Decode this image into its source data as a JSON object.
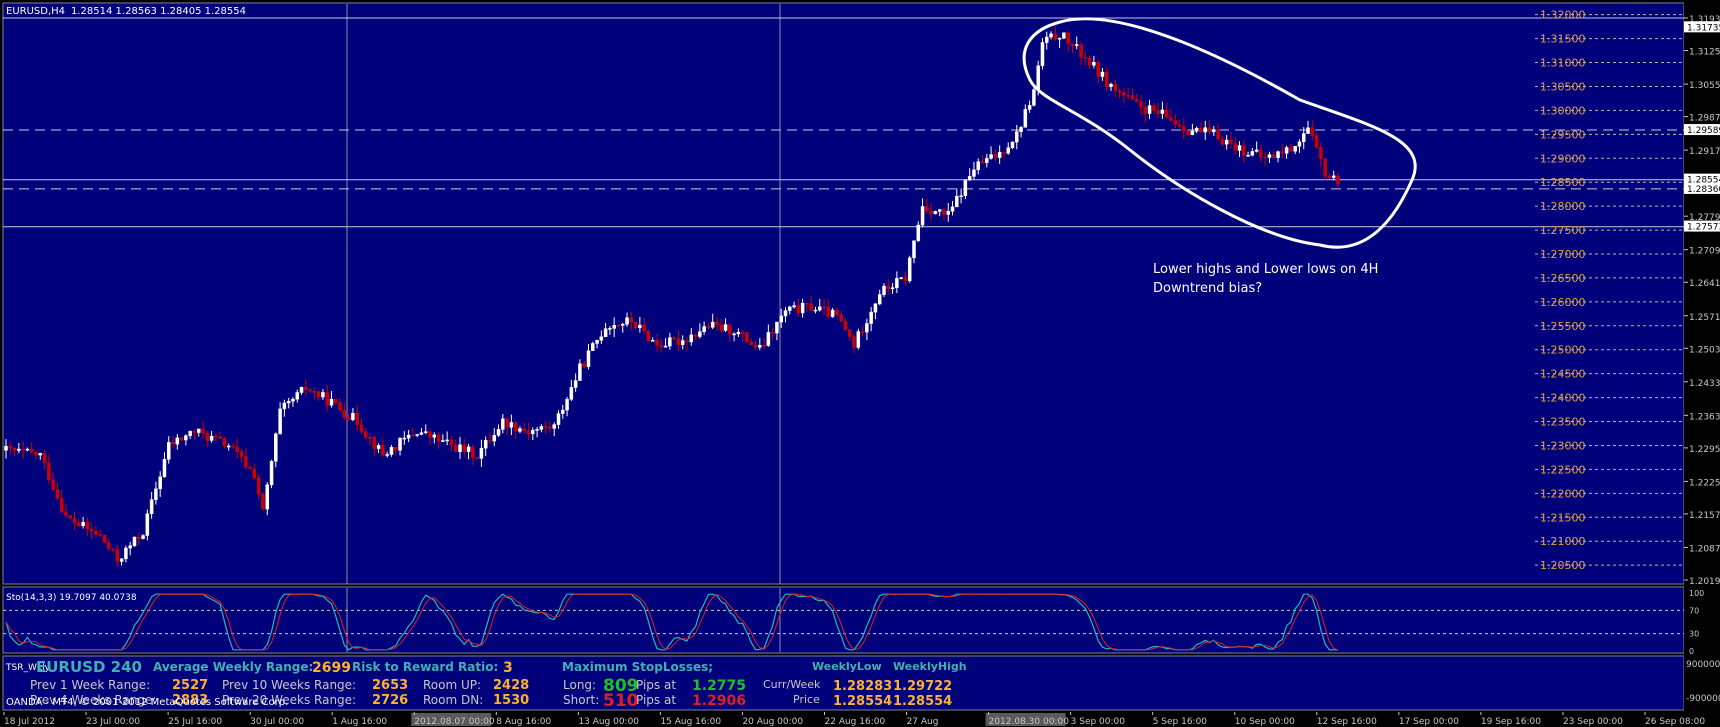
{
  "symbol_header": {
    "symbol": "EURUSD,H4",
    "ohlc": "1.28514 1.28563 1.28405 1.28554"
  },
  "colors": {
    "background": "#00007A",
    "frame": "#000000",
    "axis_text": "#C8C8C8",
    "bull": "#FFFFFF",
    "bear": "#CC0000",
    "grid": "#B4B4C8",
    "level_orange": "#E0A040",
    "stoch_main": "#20B8B8",
    "stoch_signal": "#DD2020",
    "annotation": "#FFFFFF"
  },
  "price_axis": {
    "labels": [
      "1.31930",
      "1.31250",
      "1.30550",
      "1.29870",
      "1.29170",
      "1.28554",
      "1.27790",
      "1.27090",
      "1.26410",
      "1.25710",
      "1.25030",
      "1.24330",
      "1.23630",
      "1.22950",
      "1.22250",
      "1.21570",
      "1.20870",
      "1.20190"
    ],
    "highlight_labels": [
      {
        "text": "1.31735",
        "price": 1.31735
      },
      {
        "text": "1.29589",
        "price": 1.29589
      },
      {
        "text": "1.28554",
        "price": 1.28554
      },
      {
        "text": "1.28360",
        "price": 1.2836
      },
      {
        "text": "1.27573",
        "price": 1.27573
      }
    ],
    "ylim": [
      1.2019,
      1.3193
    ]
  },
  "level_labels": [
    "1.32000",
    "1.31500",
    "1.31000",
    "1.30500",
    "1.30000",
    "1.29500",
    "1.29000",
    "1.28500",
    "1.28000",
    "1.27500",
    "1.27000",
    "1.26500",
    "1.26000",
    "1.25500",
    "1.25000",
    "1.24500",
    "1.24000",
    "1.23500",
    "1.23000",
    "1.22500",
    "1.22000",
    "1.21500",
    "1.21000",
    "1.20500"
  ],
  "time_axis": {
    "labels": [
      "18 Jul 2012",
      "23 Jul 00:00",
      "25 Jul 16:00",
      "30 Jul 00:00",
      "1 Aug 16:00",
      "2012.08.07 00:00",
      "8 Aug 16:00",
      "13 Aug 00:00",
      "15 Aug 16:00",
      "20 Aug 00:00",
      "22 Aug 16:00",
      "27 Aug",
      "2012.08.30 00:00",
      "3 Sep 00:00",
      "5 Sep 16:00",
      "10 Sep 00:00",
      "12 Sep 16:00",
      "17 Sep 00:00",
      "19 Sep 16:00",
      "23 Sep 00:00",
      "26 Sep 08:00"
    ],
    "highlighted": [
      "2012.08.07 00:00",
      "2012.08.30 00:00"
    ]
  },
  "annotation": {
    "line1": "Lower highs and Lower lows on 4H",
    "line2": "Downtrend bias?"
  },
  "stochastic": {
    "label": "Sto(14,3,3) 19.7097 40.0738",
    "axis_labels": [
      "100",
      "70",
      "30",
      "0"
    ]
  },
  "tsr_panel": {
    "indicator": "TSR_Wkly",
    "axis_label": "-900000",
    "axis_label_top": "900000",
    "title": "EURUSD 240",
    "avg_weekly_range_label": "Average Weekly Range:",
    "avg_weekly_range_value": "2699",
    "rr_label": "Risk to Reward Ratio:",
    "rr_value": "3",
    "max_sl_label": "Maximum StopLosses;",
    "weekly_low_label": "WeeklyLow",
    "weekly_high_label": "WeeklyHigh",
    "prev1_label": "Prev 1 Week Range:",
    "prev1_value": "2527",
    "prev10_label": "Prev 10 Weeks Range:",
    "prev10_value": "2653",
    "room_up_label": "Room UP:",
    "room_up_value": "2428",
    "long_label": "Long:",
    "long_value": "809",
    "pips_at_label": "Pips at",
    "long_price": "1.2775",
    "curr_week_label": "Curr/Week",
    "curr_week_low": "1.28283",
    "curr_week_high": "1.29722",
    "prev4_label": "Prev 4 Weeks Range:",
    "prev4_value": "2883",
    "prev20_label": "Prev 20 Weeks Range:",
    "prev20_value": "2726",
    "room_dn_label": "Room DN:",
    "room_dn_value": "1530",
    "short_label": "Short:",
    "short_value": "510",
    "short_price": "1.2906",
    "price_label": "Price",
    "price_low": "1.28554",
    "price_high": "1.28554",
    "copyright": "OANDA - MT4, © 2001-2012 MetaQuotes Software Corp."
  },
  "chart_data": {
    "type": "candlestick",
    "x_start": "18 Jul 2012",
    "x_end": "27 Sep 2012",
    "price_waypoints": [
      [
        0,
        1.229
      ],
      [
        8,
        1.228
      ],
      [
        14,
        1.215
      ],
      [
        22,
        1.211
      ],
      [
        26,
        1.206
      ],
      [
        32,
        1.212
      ],
      [
        38,
        1.23
      ],
      [
        44,
        1.233
      ],
      [
        52,
        1.23
      ],
      [
        58,
        1.224
      ],
      [
        60,
        1.216
      ],
      [
        64,
        1.237
      ],
      [
        70,
        1.242
      ],
      [
        76,
        1.239
      ],
      [
        82,
        1.235
      ],
      [
        88,
        1.228
      ],
      [
        96,
        1.233
      ],
      [
        104,
        1.23
      ],
      [
        110,
        1.228
      ],
      [
        116,
        1.235
      ],
      [
        122,
        1.233
      ],
      [
        128,
        1.234
      ],
      [
        134,
        1.246
      ],
      [
        140,
        1.255
      ],
      [
        146,
        1.256
      ],
      [
        152,
        1.251
      ],
      [
        158,
        1.252
      ],
      [
        164,
        1.255
      ],
      [
        170,
        1.254
      ],
      [
        176,
        1.25
      ],
      [
        182,
        1.258
      ],
      [
        188,
        1.259
      ],
      [
        194,
        1.257
      ],
      [
        198,
        1.251
      ],
      [
        204,
        1.262
      ],
      [
        210,
        1.265
      ],
      [
        214,
        1.28
      ],
      [
        220,
        1.278
      ],
      [
        226,
        1.288
      ],
      [
        232,
        1.291
      ],
      [
        236,
        1.295
      ],
      [
        240,
        1.304
      ],
      [
        242,
        1.314
      ],
      [
        246,
        1.316
      ],
      [
        252,
        1.311
      ],
      [
        258,
        1.305
      ],
      [
        264,
        1.301
      ],
      [
        270,
        1.299
      ],
      [
        276,
        1.296
      ],
      [
        282,
        1.295
      ],
      [
        288,
        1.292
      ],
      [
        294,
        1.29
      ],
      [
        300,
        1.292
      ],
      [
        304,
        1.296
      ],
      [
        308,
        1.287
      ],
      [
        310,
        1.2855
      ]
    ],
    "levels": {
      "solid": [
        1.3193,
        1.2855,
        1.2757
      ],
      "dashed": [
        1.2959,
        1.2836
      ]
    }
  }
}
